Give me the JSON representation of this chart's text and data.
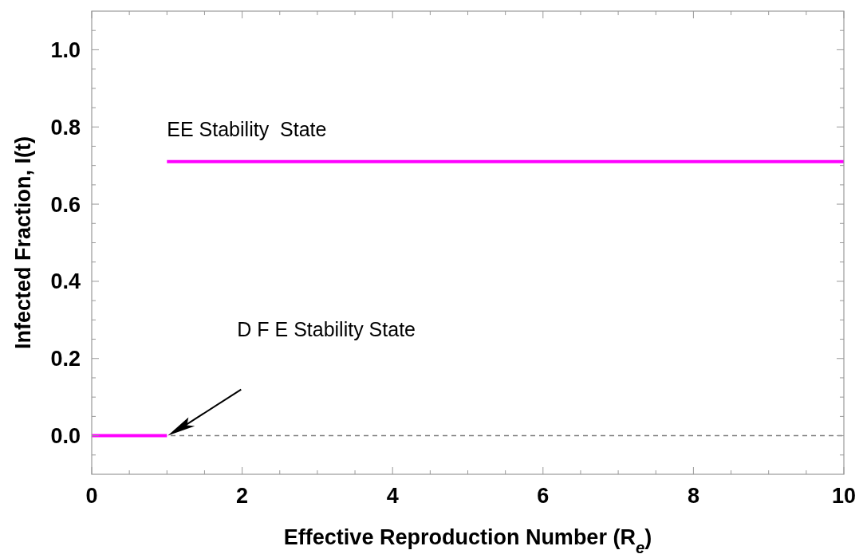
{
  "chart_data": {
    "type": "line",
    "xlabel": "Effective Reproduction Number (R$_{e}$)",
    "ylabel": "Infected Fraction, I(t)",
    "series": [
      {
        "color": "#ff00ff",
        "x": [
          0,
          1
        ],
        "values": [
          0,
          0
        ]
      },
      {
        "color": "#ff00ff",
        "x": [
          1,
          10
        ],
        "values": [
          0.71,
          0.71
        ]
      }
    ],
    "xlim": [
      0,
      10
    ],
    "ylim": [
      -0.1,
      1.1
    ],
    "xticks": [
      0,
      {
        "value": 0.5,
        "label": null
      },
      {
        "value": 1,
        "label": null
      },
      {
        "value": 1.5,
        "label": null
      },
      2,
      {
        "value": 2.5,
        "label": null
      },
      {
        "value": 3,
        "label": null
      },
      {
        "value": 3.5,
        "label": null
      },
      4,
      {
        "value": 4.5,
        "label": null
      },
      {
        "value": 5,
        "label": null
      },
      {
        "value": 5.5,
        "label": null
      },
      6,
      {
        "value": 6.5,
        "label": null
      },
      {
        "value": 7,
        "label": null
      },
      {
        "value": 7.5,
        "label": null
      },
      8,
      {
        "value": 8.5,
        "label": null
      },
      {
        "value": 9,
        "label": null
      },
      {
        "value": 9.5,
        "label": null
      },
      10
    ],
    "yticks": [
      {
        "value": -0.05,
        "label": null
      },
      {
        "value": 0,
        "label": "0.0"
      },
      {
        "value": 0.05,
        "label": null
      },
      {
        "value": 0.1,
        "label": null
      },
      {
        "value": 0.15,
        "label": null
      },
      {
        "value": 0.2,
        "label": "0.2"
      },
      {
        "value": 0.25,
        "label": null
      },
      {
        "value": 0.3,
        "label": null
      },
      {
        "value": 0.35,
        "label": null
      },
      {
        "value": 0.4,
        "label": "0.4"
      },
      {
        "value": 0.45,
        "label": null
      },
      {
        "value": 0.5,
        "label": null
      },
      {
        "value": 0.55,
        "label": null
      },
      {
        "value": 0.6,
        "label": "0.6"
      },
      {
        "value": 0.65,
        "label": null
      },
      {
        "value": 0.7,
        "label": null
      },
      {
        "value": 0.75,
        "label": null
      },
      {
        "value": 0.8,
        "label": "0.8"
      },
      {
        "value": 0.85,
        "label": null
      },
      {
        "value": 0.9,
        "label": null
      },
      {
        "value": 0.95,
        "label": null
      },
      {
        "value": 1,
        "label": "1.0"
      },
      {
        "value": 1.05,
        "label": null
      }
    ],
    "ref_lines": [
      {
        "axis": "y",
        "value": 0,
        "color": "#808080",
        "line_style": "dashed"
      }
    ],
    "annotations": [
      {
        "text": "EE Stability  State",
        "x": 1,
        "y": 0.71
      },
      "D F E Stability State"
    ],
    "grid": false,
    "marker": "none",
    "line_style": "solid"
  }
}
